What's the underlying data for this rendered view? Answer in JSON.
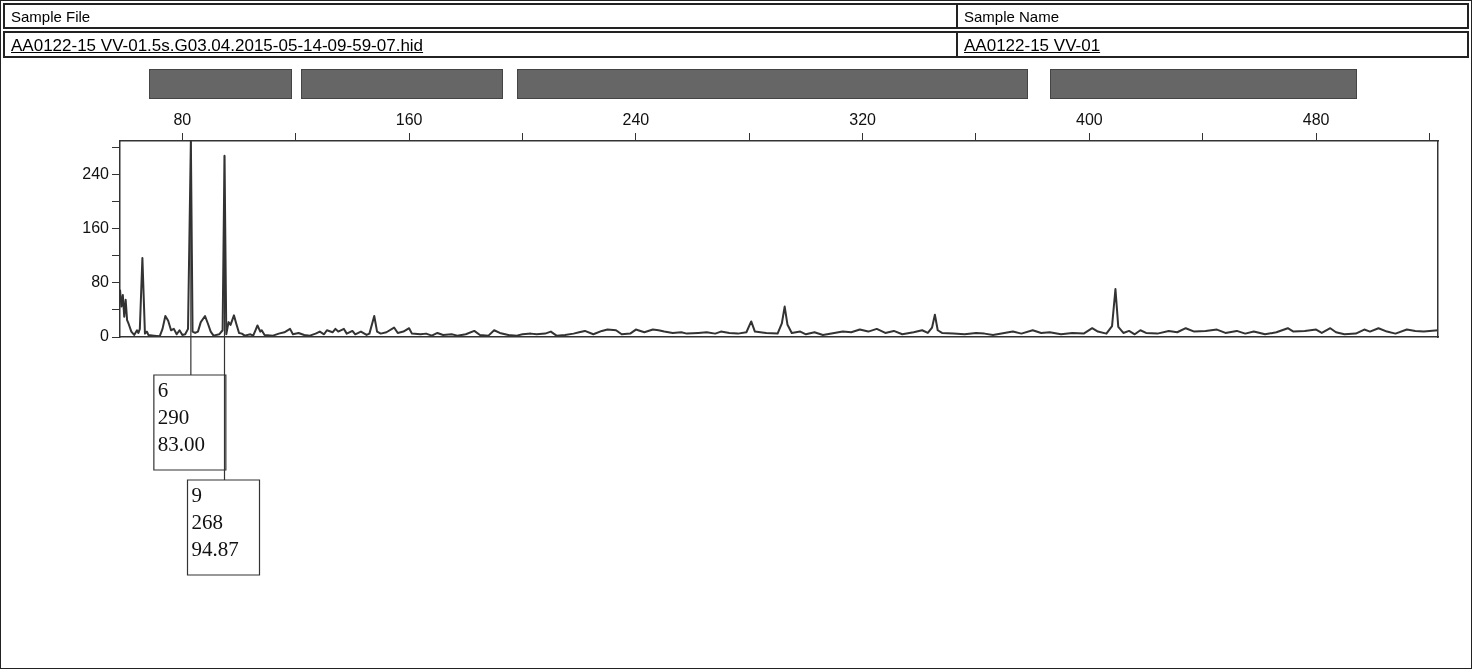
{
  "chart_data": {
    "type": "line",
    "annotations": [
      "Sample File",
      "Sample Name",
      "AA0122-15 VV-01.5s.G03.04.2015-05-14-09-59-07.hid",
      "AA0122-15 VV-01",
      {
        "text": "6\n290\n83.00",
        "x": 83,
        "y": 290
      },
      {
        "text": "9\n268\n94.87",
        "x": 94.87,
        "y": 268
      }
    ],
    "xlim": [
      58,
      523
    ],
    "xticks": [
      80,
      {
        "value": 120,
        "label": null
      },
      160,
      {
        "value": 200,
        "label": null
      },
      240,
      {
        "value": 280,
        "label": null
      },
      320,
      {
        "value": 360,
        "label": null
      },
      400,
      {
        "value": 440,
        "label": null
      },
      480,
      {
        "value": 520,
        "label": null
      }
    ],
    "ylim": [
      0,
      290
    ],
    "yticks": [
      0,
      {
        "value": 40,
        "label": null
      },
      80,
      {
        "value": 120,
        "label": null
      },
      160,
      {
        "value": 200,
        "label": null
      },
      240,
      {
        "value": 280,
        "label": null
      }
    ],
    "grid": false,
    "legend": false,
    "marker": "none",
    "line_style": "solid",
    "series": [
      {
        "color": "#333333",
        "x": [
          58,
          58.5,
          59,
          59.5,
          60,
          60.5,
          61,
          62,
          63,
          64,
          64.5,
          65,
          65.9,
          66.8,
          67.5,
          68,
          70,
          72,
          73,
          74,
          75,
          76,
          77,
          78,
          79,
          80,
          81,
          82,
          83,
          83.6,
          84.5,
          85.5,
          86.5,
          88,
          89,
          90,
          91,
          93,
          94.2,
          94.87,
          95.5,
          96.3,
          97,
          98.2,
          99,
          100,
          101,
          102,
          104,
          105,
          106.5,
          107.5,
          108,
          109,
          112,
          114,
          116,
          118,
          119,
          121,
          123,
          125,
          127,
          128.5,
          130,
          131,
          133,
          134,
          135,
          137,
          138,
          140,
          141,
          143,
          145,
          146,
          147.7,
          148.7,
          150,
          152,
          154.7,
          156,
          158,
          160,
          161,
          164,
          166,
          168,
          170,
          172,
          175,
          177,
          180,
          183,
          185,
          188,
          190,
          192,
          195,
          198,
          200,
          203,
          205,
          208,
          210,
          212,
          215,
          218,
          220,
          222,
          225,
          228,
          230,
          233,
          235,
          238,
          240,
          243,
          246,
          248,
          250,
          253,
          256,
          258,
          262,
          265,
          268,
          270,
          273,
          276,
          279,
          280.7,
          282,
          286,
          290,
          291.5,
          292.5,
          293.5,
          295,
          298,
          300,
          303,
          306,
          310,
          313,
          316,
          319,
          322,
          325,
          328,
          331,
          334,
          338,
          341,
          343,
          344.5,
          345.5,
          346.5,
          348,
          352,
          356,
          360,
          363,
          366,
          370,
          373,
          376,
          380,
          383,
          386,
          390,
          394,
          398,
          401,
          403,
          406,
          408,
          409.2,
          410.2,
          412,
          414,
          416,
          418,
          420,
          424,
          428,
          431,
          434,
          437,
          441,
          445,
          448,
          452,
          455,
          458,
          462,
          466,
          470,
          472,
          476,
          480,
          482,
          485,
          487,
          490,
          494,
          497,
          499,
          502,
          505,
          508,
          512,
          515,
          518,
          523
        ],
        "values": [
          70,
          45,
          62,
          30,
          55,
          25,
          20,
          8,
          3,
          10,
          6,
          12,
          117,
          5,
          8,
          3,
          2,
          1,
          12,
          31,
          24,
          10,
          12,
          4,
          10,
          3,
          4,
          12,
          290,
          8,
          6,
          8,
          22,
          31,
          20,
          8,
          2,
          4,
          10,
          268,
          4,
          22,
          18,
          32,
          20,
          6,
          5,
          2,
          4,
          2,
          17,
          8,
          10,
          3,
          2,
          5,
          7,
          12,
          4,
          6,
          3,
          2,
          5,
          8,
          4,
          10,
          7,
          12,
          8,
          12,
          5,
          9,
          4,
          8,
          3,
          5,
          31,
          8,
          5,
          7,
          14,
          6,
          8,
          13,
          5,
          4,
          5,
          2,
          6,
          3,
          4,
          2,
          4,
          9,
          3,
          2,
          10,
          6,
          3,
          2,
          4,
          5,
          4,
          5,
          8,
          2,
          3,
          5,
          7,
          9,
          4,
          9,
          11,
          10,
          4,
          5,
          11,
          7,
          11,
          10,
          8,
          6,
          7,
          5,
          6,
          7,
          5,
          8,
          6,
          5,
          7,
          23,
          8,
          6,
          5,
          20,
          45,
          18,
          6,
          8,
          4,
          7,
          3,
          6,
          8,
          7,
          11,
          8,
          12,
          6,
          9,
          4,
          7,
          10,
          6,
          14,
          33,
          10,
          6,
          5,
          4,
          6,
          5,
          3,
          6,
          8,
          5,
          10,
          6,
          7,
          4,
          6,
          5,
          13,
          8,
          5,
          16,
          71,
          15,
          6,
          9,
          4,
          10,
          6,
          5,
          9,
          7,
          13,
          8,
          9,
          11,
          6,
          9,
          5,
          8,
          4,
          7,
          13,
          8,
          9,
          11,
          6,
          13,
          7,
          4,
          5,
          11,
          8,
          13,
          8,
          5,
          11,
          9,
          8,
          10
        ]
      }
    ]
  }
}
